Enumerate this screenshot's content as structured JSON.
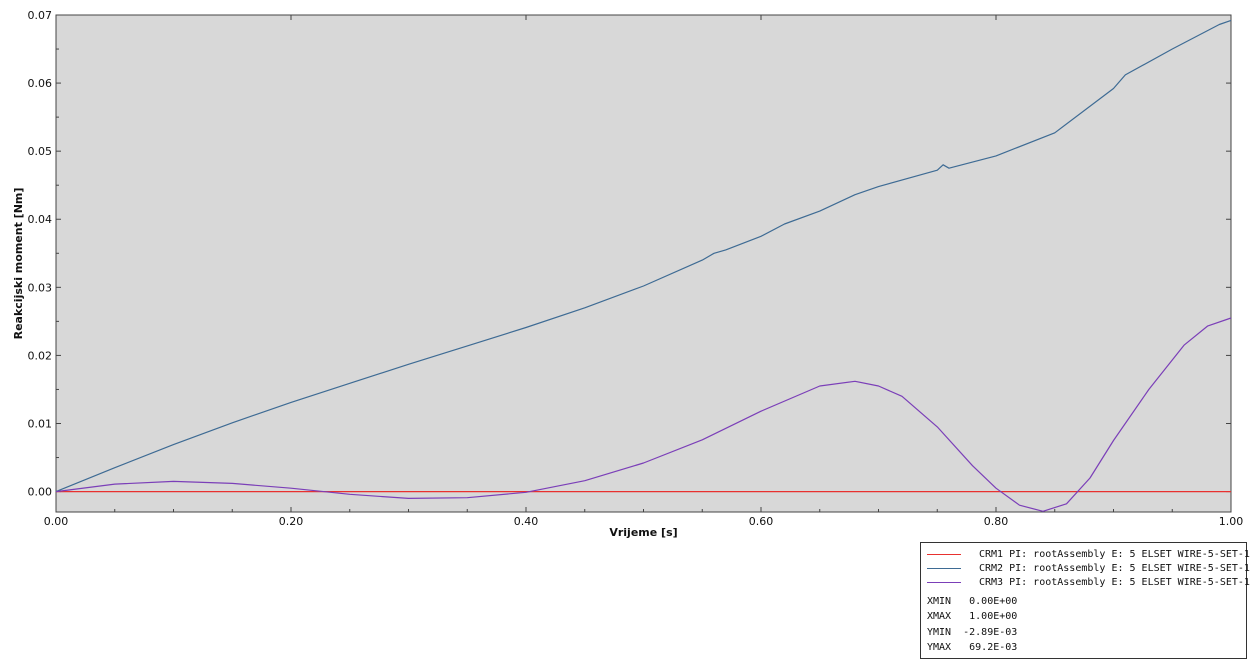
{
  "chart_data": {
    "type": "line",
    "title": "",
    "xlabel": "Vrijeme [s]",
    "ylabel": "Reakcijski moment [Nm]",
    "xlim": [
      0,
      1
    ],
    "ylim": [
      -0.003,
      0.07
    ],
    "x_ticks": [
      "0.00",
      "0.20",
      "0.40",
      "0.60",
      "0.80",
      "1.00"
    ],
    "y_ticks": [
      "0.00",
      "0.01",
      "0.02",
      "0.03",
      "0.04",
      "0.05",
      "0.06",
      "0.07"
    ],
    "grid": false,
    "legend_position": "bottom-right",
    "series": [
      {
        "name": "CRM1 PI: rootAssembly E: 5 ELSET WIRE-5-SET-1",
        "color": "#e8312f",
        "x": [
          0,
          1
        ],
        "y": [
          0,
          0
        ]
      },
      {
        "name": "CRM2 PI: rootAssembly E: 5 ELSET WIRE-5-SET-1",
        "color": "#3e6b94",
        "x": [
          0,
          0.05,
          0.1,
          0.15,
          0.2,
          0.25,
          0.3,
          0.35,
          0.4,
          0.45,
          0.5,
          0.55,
          0.56,
          0.57,
          0.6,
          0.62,
          0.65,
          0.68,
          0.7,
          0.75,
          0.755,
          0.76,
          0.8,
          0.85,
          0.9,
          0.91,
          0.95,
          0.99,
          1.0
        ],
        "y": [
          0,
          0.0035,
          0.0069,
          0.0101,
          0.0131,
          0.0159,
          0.0187,
          0.0214,
          0.0241,
          0.027,
          0.0302,
          0.034,
          0.035,
          0.0355,
          0.0375,
          0.0393,
          0.0412,
          0.0436,
          0.0448,
          0.0472,
          0.048,
          0.0475,
          0.0493,
          0.0527,
          0.0592,
          0.0612,
          0.065,
          0.0686,
          0.0692
        ]
      },
      {
        "name": "CRM3 PI: rootAssembly E: 5 ELSET WIRE-5-SET-1",
        "color": "#7b3fb8",
        "x": [
          0,
          0.05,
          0.1,
          0.15,
          0.2,
          0.25,
          0.3,
          0.35,
          0.4,
          0.45,
          0.5,
          0.55,
          0.6,
          0.65,
          0.68,
          0.7,
          0.72,
          0.75,
          0.78,
          0.8,
          0.82,
          0.84,
          0.86,
          0.88,
          0.9,
          0.93,
          0.96,
          0.98,
          1.0
        ],
        "y": [
          0,
          0.0011,
          0.0015,
          0.0012,
          0.0005,
          -0.0004,
          -0.001,
          -0.0009,
          -0.0001,
          0.0016,
          0.0042,
          0.0076,
          0.0118,
          0.0155,
          0.0162,
          0.0155,
          0.014,
          0.0095,
          0.0038,
          0.0005,
          -0.002,
          -0.0029,
          -0.0018,
          0.002,
          0.0075,
          0.015,
          0.0215,
          0.0243,
          0.0255
        ]
      }
    ]
  },
  "legend_stats": {
    "xmin": "XMIN   0.00E+00",
    "xmax": "XMAX   1.00E+00",
    "ymin": "YMIN  -2.89E-03",
    "ymax": "YMAX   69.2E-03"
  }
}
